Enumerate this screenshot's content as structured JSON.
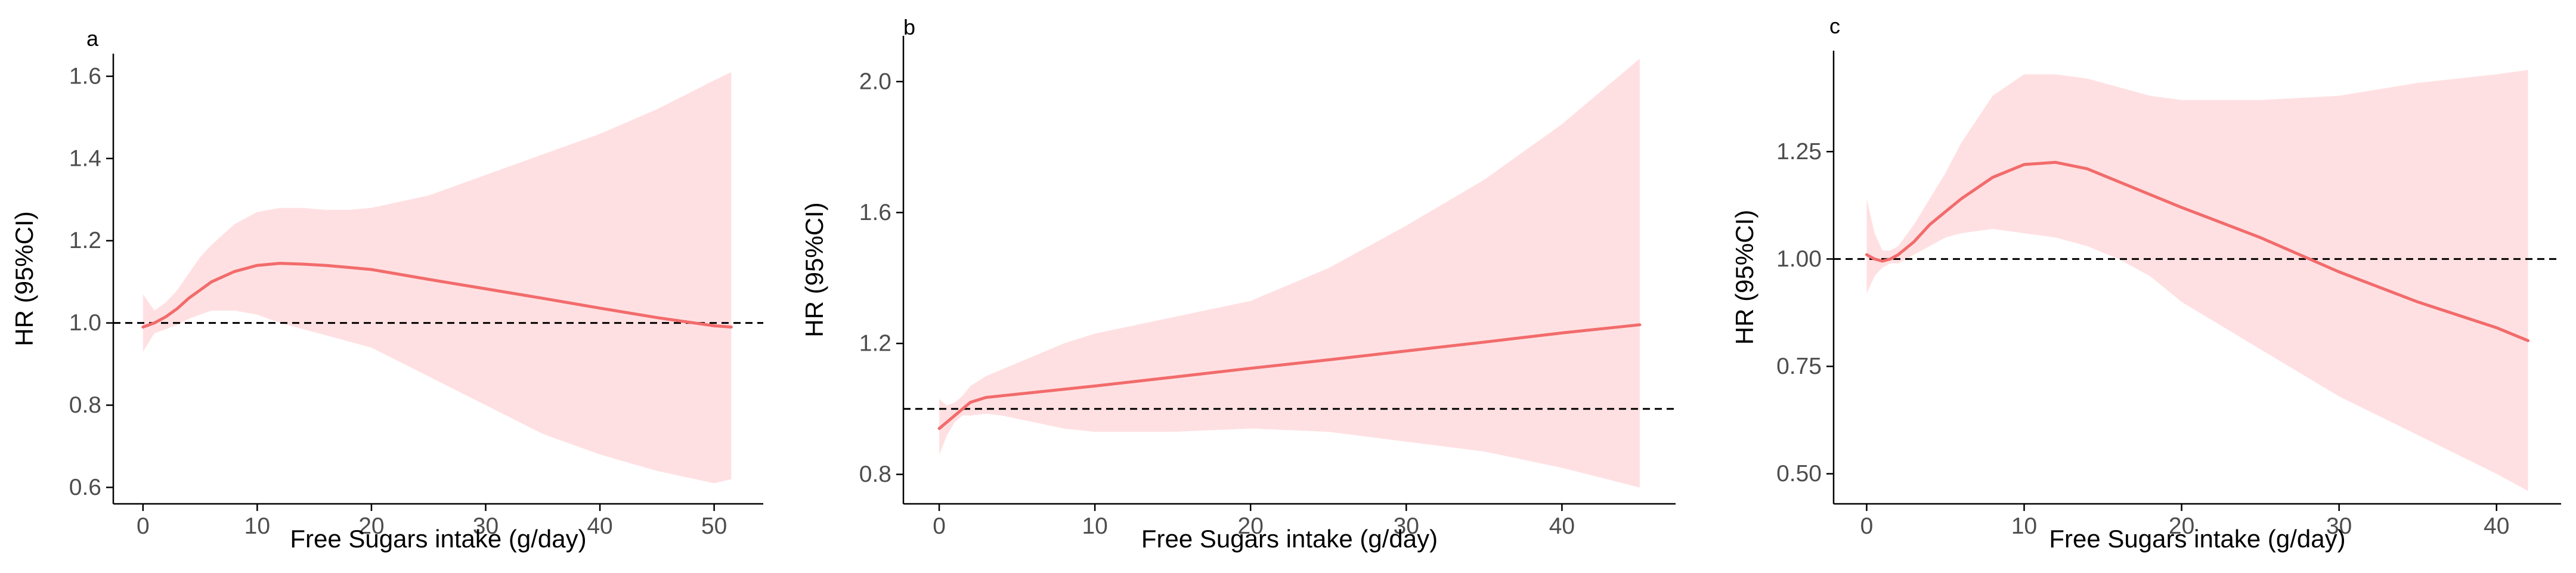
{
  "figure": {
    "colors": {
      "band": "#ffe0e2",
      "line": "#f26b6b",
      "reference": "#000000",
      "axis": "#000000",
      "tick_text": "#4d4d4d"
    }
  },
  "chart_data": [
    {
      "type": "line",
      "panel_label": "a",
      "xlabel": "Free Sugars intake (g/day)",
      "ylabel": "HR (95%CI)",
      "xlim": [
        -2.6,
        54.3
      ],
      "ylim": [
        0.56,
        1.655
      ],
      "xticks": [
        0,
        10,
        20,
        30,
        40,
        50
      ],
      "xtick_labels": [
        "0",
        "10",
        "20",
        "30",
        "40",
        "50"
      ],
      "yticks": [
        0.6,
        0.8,
        1.0,
        1.2,
        1.4,
        1.6
      ],
      "ytick_labels": [
        "0.6",
        "0.8",
        "1.0",
        "1.2",
        "1.4",
        "1.6"
      ],
      "reference_line": 1.0,
      "series": [
        {
          "name": "HR",
          "x": [
            0,
            1,
            2,
            3,
            4,
            5,
            6,
            8,
            10,
            12,
            14,
            16,
            18,
            20,
            25,
            30,
            35,
            40,
            45,
            50,
            51.5
          ],
          "y": [
            0.99,
            1.0,
            1.015,
            1.035,
            1.06,
            1.08,
            1.1,
            1.125,
            1.14,
            1.145,
            1.143,
            1.14,
            1.135,
            1.13,
            1.106,
            1.083,
            1.06,
            1.036,
            1.013,
            0.993,
            0.99
          ],
          "lower": [
            0.93,
            0.975,
            0.985,
            0.995,
            1.01,
            1.02,
            1.03,
            1.03,
            1.02,
            1.0,
            0.985,
            0.97,
            0.955,
            0.94,
            0.87,
            0.8,
            0.73,
            0.68,
            0.64,
            0.61,
            0.62
          ],
          "upper": [
            1.07,
            1.03,
            1.05,
            1.08,
            1.12,
            1.16,
            1.19,
            1.24,
            1.27,
            1.28,
            1.28,
            1.275,
            1.275,
            1.28,
            1.31,
            1.36,
            1.41,
            1.46,
            1.52,
            1.59,
            1.61
          ]
        }
      ]
    },
    {
      "type": "line",
      "panel_label": "b",
      "xlabel": "Free Sugars intake (g/day)",
      "ylabel": "HR (95%CI)",
      "xlim": [
        -2.3,
        47.3
      ],
      "ylim": [
        0.71,
        2.14
      ],
      "xticks": [
        0,
        10,
        20,
        30,
        40
      ],
      "xtick_labels": [
        "0",
        "10",
        "20",
        "30",
        "40"
      ],
      "yticks": [
        0.8,
        1.2,
        1.6,
        2.0
      ],
      "ytick_labels": [
        "0.8",
        "1.2",
        "1.6",
        "2.0"
      ],
      "reference_line": 1.0,
      "series": [
        {
          "name": "HR",
          "x": [
            0,
            0.5,
            1,
            1.5,
            2,
            3,
            4,
            6,
            8,
            10,
            15,
            20,
            25,
            30,
            35,
            40,
            45
          ],
          "y": [
            0.94,
            0.96,
            0.98,
            1.0,
            1.02,
            1.035,
            1.04,
            1.05,
            1.06,
            1.07,
            1.097,
            1.124,
            1.15,
            1.177,
            1.204,
            1.232,
            1.257
          ],
          "lower": [
            0.86,
            0.92,
            0.96,
            0.98,
            0.98,
            0.985,
            0.98,
            0.96,
            0.94,
            0.93,
            0.93,
            0.94,
            0.93,
            0.9,
            0.87,
            0.82,
            0.76
          ],
          "upper": [
            1.03,
            1.01,
            1.02,
            1.04,
            1.07,
            1.1,
            1.12,
            1.16,
            1.2,
            1.23,
            1.28,
            1.33,
            1.43,
            1.56,
            1.7,
            1.87,
            2.07
          ]
        }
      ]
    },
    {
      "type": "line",
      "panel_label": "c",
      "xlabel": "Free Sugars intake (g/day)",
      "ylabel": "HR (95%CI)",
      "xlim": [
        -2.1,
        44.1
      ],
      "ylim": [
        0.43,
        1.485
      ],
      "xticks": [
        0,
        10,
        20,
        30,
        40
      ],
      "xtick_labels": [
        "0",
        "10",
        "20",
        "30",
        "40"
      ],
      "yticks": [
        0.5,
        0.75,
        1.0,
        1.25
      ],
      "ytick_labels": [
        "0.50",
        "0.75",
        "1.00",
        "1.25"
      ],
      "reference_line": 1.0,
      "series": [
        {
          "name": "HR",
          "x": [
            0,
            0.5,
            1,
            1.5,
            2,
            3,
            4,
            5,
            6,
            8,
            10,
            12,
            14,
            16,
            18,
            20,
            25,
            30,
            35,
            40,
            42
          ],
          "y": [
            1.01,
            1.0,
            0.995,
            1.0,
            1.01,
            1.04,
            1.08,
            1.11,
            1.14,
            1.19,
            1.22,
            1.225,
            1.21,
            1.18,
            1.15,
            1.12,
            1.05,
            0.97,
            0.9,
            0.84,
            0.81
          ],
          "lower": [
            0.92,
            0.96,
            0.98,
            0.99,
            0.99,
            1.01,
            1.03,
            1.05,
            1.06,
            1.07,
            1.06,
            1.05,
            1.03,
            1.0,
            0.96,
            0.9,
            0.79,
            0.68,
            0.59,
            0.5,
            0.46
          ],
          "upper": [
            1.14,
            1.06,
            1.02,
            1.02,
            1.03,
            1.08,
            1.14,
            1.2,
            1.27,
            1.38,
            1.43,
            1.43,
            1.42,
            1.4,
            1.38,
            1.37,
            1.37,
            1.38,
            1.41,
            1.43,
            1.44
          ]
        }
      ]
    }
  ]
}
